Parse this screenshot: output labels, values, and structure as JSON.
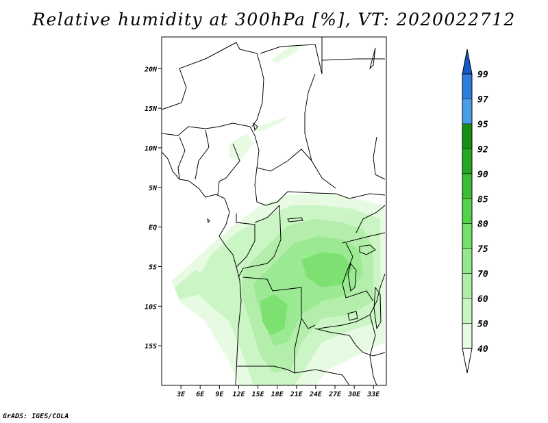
{
  "title": "Relative humidity at 300hPa [%], VT: 2020022712",
  "credit": "GrADS: IGES/COLA",
  "map": {
    "lon_range": [
      0,
      35
    ],
    "lat_range": [
      -20,
      24
    ],
    "lat_labels": [
      "20N",
      "15N",
      "10N",
      "5N",
      "EQ",
      "5S",
      "10S",
      "15S"
    ],
    "lat_values": [
      20,
      15,
      10,
      5,
      0,
      -5,
      -10,
      -15
    ],
    "lon_labels": [
      "3E",
      "6E",
      "9E",
      "12E",
      "15E",
      "18E",
      "21E",
      "24E",
      "27E",
      "30E",
      "33E"
    ],
    "lon_values": [
      3,
      6,
      9,
      12,
      15,
      18,
      21,
      24,
      27,
      30,
      33
    ]
  },
  "colorbar": {
    "levels": [
      "40",
      "50",
      "60",
      "70",
      "75",
      "80",
      "85",
      "90",
      "92",
      "95",
      "97",
      "99"
    ],
    "colors": [
      "#ffffff",
      "#e6fbe2",
      "#c9f5c2",
      "#afeea6",
      "#96e88d",
      "#77e06b",
      "#54d24b",
      "#3bbc35",
      "#27a624",
      "#159015",
      "#4a9ee8",
      "#2c7ddd",
      "#1559c9"
    ]
  }
}
